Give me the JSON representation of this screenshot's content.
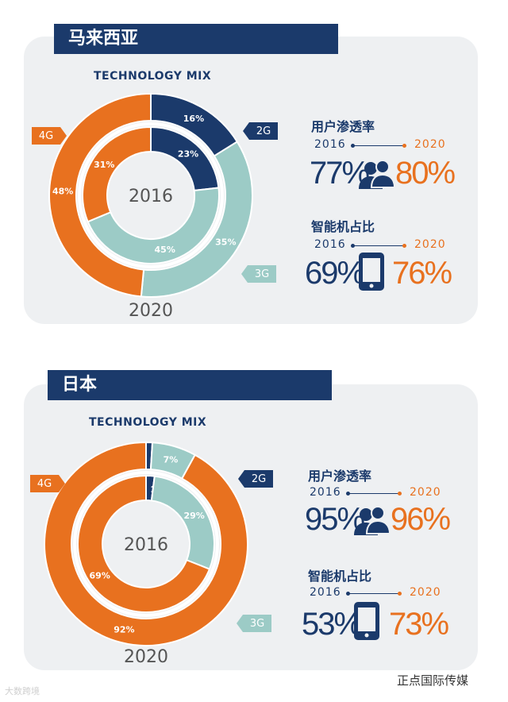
{
  "colors": {
    "navy": "#1b3a6b",
    "orange": "#e8711f",
    "teal": "#9ccbc6"
  },
  "panels": [
    {
      "country": "马来西亚",
      "tech_title": "TECHNOLOGY MIX",
      "center_year": "2016",
      "bottom_year": "2020",
      "tags": {
        "g4": "4G",
        "g2": "2G",
        "g3": "3G"
      },
      "stats": {
        "penetration_label": "用户渗透率",
        "penetration_2016": "77%",
        "penetration_2020": "80%",
        "smartphone_label": "智能机占比",
        "smartphone_2016": "69%",
        "smartphone_2020": "76%",
        "year_from": "2016",
        "year_to": "2020"
      }
    },
    {
      "country": "日本",
      "tech_title": "TECHNOLOGY MIX",
      "center_year": "2016",
      "bottom_year": "2020",
      "tags": {
        "g4": "4G",
        "g2": "2G",
        "g3": "3G"
      },
      "stats": {
        "penetration_label": "用户渗透率",
        "penetration_2016": "95%",
        "penetration_2020": "96%",
        "smartphone_label": "智能机占比",
        "smartphone_2016": "53%",
        "smartphone_2020": "73%",
        "year_from": "2016",
        "year_to": "2020"
      }
    }
  ],
  "chart_data": [
    {
      "type": "pie",
      "title": "TECHNOLOGY MIX",
      "region": "马来西亚",
      "series": [
        {
          "name": "2020",
          "ring": "outer",
          "categories": [
            "2G",
            "3G",
            "4G"
          ],
          "values": [
            16,
            35,
            48
          ]
        },
        {
          "name": "2016",
          "ring": "inner",
          "categories": [
            "2G",
            "3G",
            "4G"
          ],
          "values": [
            23,
            45,
            31
          ]
        }
      ]
    },
    {
      "type": "pie",
      "title": "TECHNOLOGY MIX",
      "region": "日本",
      "series": [
        {
          "name": "2020",
          "ring": "outer",
          "categories": [
            "2G",
            "3G",
            "4G"
          ],
          "values": [
            1,
            7,
            92
          ]
        },
        {
          "name": "2016",
          "ring": "inner",
          "categories": [
            "2G",
            "3G",
            "4G"
          ],
          "values": [
            2,
            29,
            69
          ]
        }
      ]
    }
  ],
  "watermarks": {
    "left": "大数跨境",
    "right": "正点国际传媒"
  }
}
